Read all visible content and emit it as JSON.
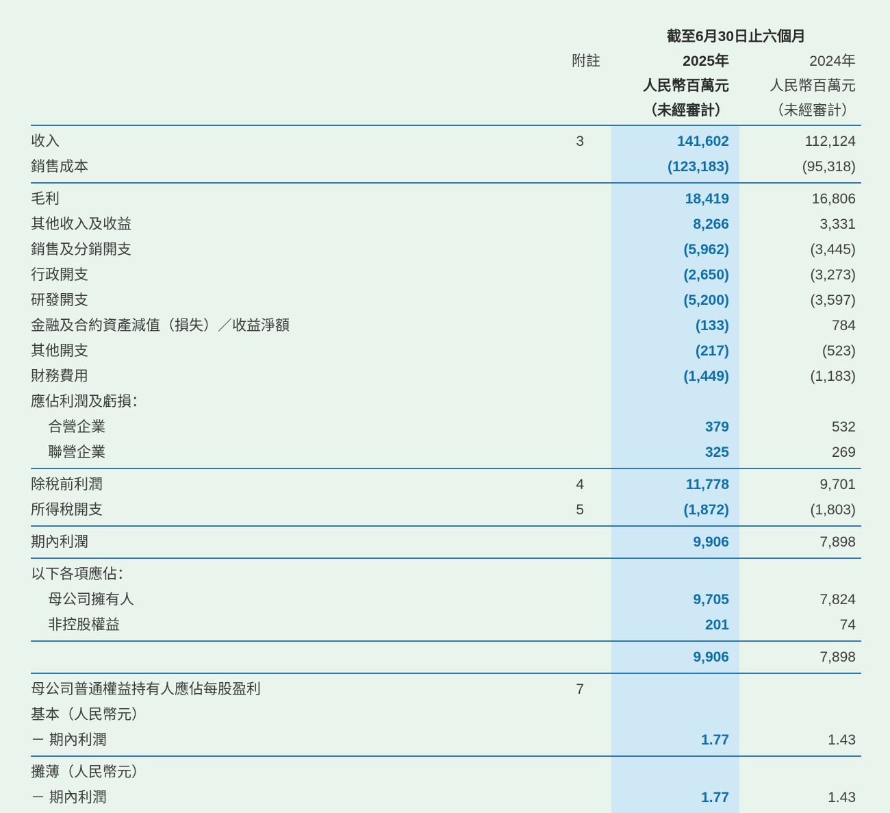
{
  "page": {
    "colors": {
      "bg": "#e8f4ec",
      "band": "#cfe8f5",
      "accent": "#0e6ea8",
      "line": "#2e79b0",
      "text": "#3c3c3c",
      "header_strong": "#2b2b2b"
    }
  },
  "header": {
    "period_title": "截至6月30日止六個月",
    "note_col": "附註",
    "col_2025": {
      "year": "2025年",
      "unit": "人民幣百萬元",
      "audit": "（未經審計）"
    },
    "col_2024": {
      "year": "2024年",
      "unit": "人民幣百萬元",
      "audit": "（未經審計）"
    }
  },
  "table": {
    "rows": [
      {
        "label": "收入",
        "note": "3",
        "v2025": "141,602",
        "v2024": "112,124"
      },
      {
        "label": "銷售成本",
        "v2025": "(123,183)",
        "v2024": "(95,318)",
        "divider_after": true
      },
      {
        "label": "毛利",
        "v2025": "18,419",
        "v2024": "16,806"
      },
      {
        "label": "其他收入及收益",
        "v2025": "8,266",
        "v2024": "3,331"
      },
      {
        "label": "銷售及分銷開支",
        "v2025": "(5,962)",
        "v2024": "(3,445)"
      },
      {
        "label": "行政開支",
        "v2025": "(2,650)",
        "v2024": "(3,273)"
      },
      {
        "label": "研發開支",
        "v2025": "(5,200)",
        "v2024": "(3,597)"
      },
      {
        "label": "金融及合約資產減值（損失）／收益淨額",
        "v2025": "(133)",
        "v2024": "784"
      },
      {
        "label": "其他開支",
        "v2025": "(217)",
        "v2024": "(523)"
      },
      {
        "label": "財務費用",
        "v2025": "(1,449)",
        "v2024": "(1,183)"
      },
      {
        "label": "應佔利潤及虧損："
      },
      {
        "label": "合營企業",
        "indent": 1,
        "v2025": "379",
        "v2024": "532"
      },
      {
        "label": "聯營企業",
        "indent": 1,
        "v2025": "325",
        "v2024": "269",
        "divider_after": true
      },
      {
        "label": "除稅前利潤",
        "note": "4",
        "v2025": "11,778",
        "v2024": "9,701"
      },
      {
        "label": "所得稅開支",
        "note": "5",
        "v2025": "(1,872)",
        "v2024": "(1,803)",
        "divider_after": true
      },
      {
        "label": "期內利潤",
        "v2025": "9,906",
        "v2024": "7,898",
        "divider_after": true
      },
      {
        "label": "以下各項應佔："
      },
      {
        "label": "母公司擁有人",
        "indent": 1,
        "v2025": "9,705",
        "v2024": "7,824"
      },
      {
        "label": "非控股權益",
        "indent": 1,
        "v2025": "201",
        "v2024": "74",
        "divider_after": true
      },
      {
        "label": "",
        "v2025": "9,906",
        "v2024": "7,898",
        "divider_after": true
      },
      {
        "label": "母公司普通權益持有人應佔每股盈利",
        "note": "7"
      },
      {
        "label": "基本（人民幣元）"
      },
      {
        "label": "－ 期內利潤",
        "v2025": "1.77",
        "v2024": "1.43",
        "divider_after": true
      },
      {
        "label": "攤薄（人民幣元）"
      },
      {
        "label": "－ 期內利潤",
        "v2025": "1.77",
        "v2024": "1.43",
        "divider_after": true
      }
    ]
  }
}
